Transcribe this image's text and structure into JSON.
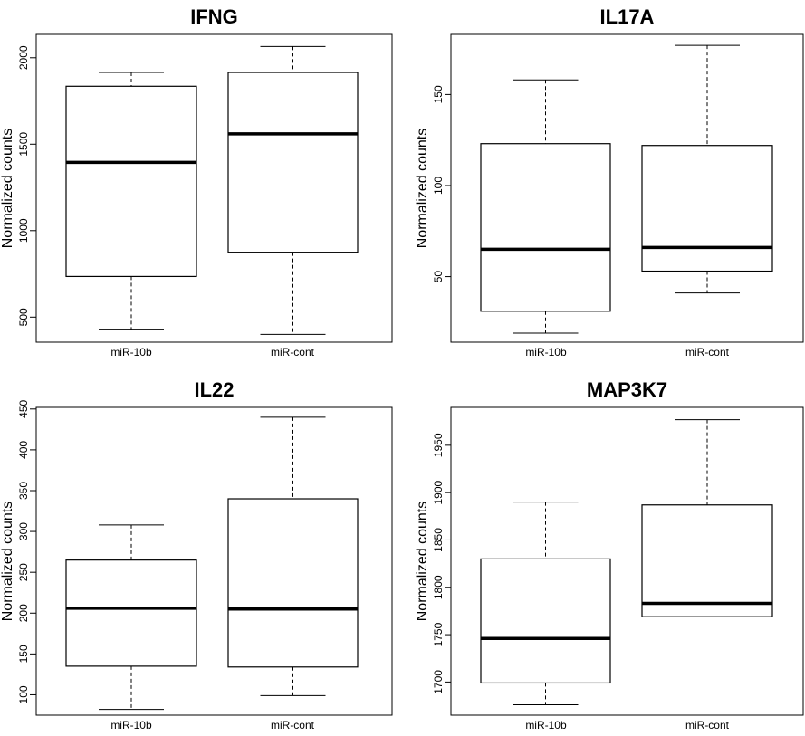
{
  "chart_data": [
    {
      "type": "boxplot",
      "title": "IFNG",
      "ylabel": "Normalized counts",
      "categories": [
        "miR-10b",
        "miR-cont"
      ],
      "yticks": [
        500,
        1000,
        1500,
        2000
      ],
      "ylim": [
        355,
        2135
      ],
      "boxes": [
        {
          "category": "miR-10b",
          "min": 430,
          "q1": 735,
          "median": 1395,
          "q3": 1835,
          "max": 1915
        },
        {
          "category": "miR-cont",
          "min": 400,
          "q1": 875,
          "median": 1560,
          "q3": 1915,
          "max": 2065
        }
      ]
    },
    {
      "type": "boxplot",
      "title": "IL17A",
      "ylabel": "Normalized counts",
      "categories": [
        "miR-10b",
        "miR-cont"
      ],
      "yticks": [
        50,
        100,
        150
      ],
      "ylim": [
        14,
        183
      ],
      "boxes": [
        {
          "category": "miR-10b",
          "min": 19,
          "q1": 31,
          "median": 65,
          "q3": 123,
          "max": 158
        },
        {
          "category": "miR-cont",
          "min": 41,
          "q1": 53,
          "median": 66,
          "q3": 122,
          "max": 177
        }
      ]
    },
    {
      "type": "boxplot",
      "title": "IL22",
      "ylabel": "Normalized counts",
      "categories": [
        "miR-10b",
        "miR-cont"
      ],
      "yticks": [
        100,
        150,
        200,
        250,
        300,
        350,
        400,
        450
      ],
      "ylim": [
        75,
        452
      ],
      "boxes": [
        {
          "category": "miR-10b",
          "min": 82,
          "q1": 135,
          "median": 206,
          "q3": 265,
          "max": 308
        },
        {
          "category": "miR-cont",
          "min": 99,
          "q1": 134,
          "median": 205,
          "q3": 340,
          "max": 440
        }
      ]
    },
    {
      "type": "boxplot",
      "title": "MAP3K7",
      "ylabel": "Normalized counts",
      "categories": [
        "miR-10b",
        "miR-cont"
      ],
      "yticks": [
        1700,
        1750,
        1800,
        1850,
        1900,
        1950
      ],
      "ylim": [
        1665,
        1990
      ],
      "boxes": [
        {
          "category": "miR-10b",
          "min": 1676,
          "q1": 1699,
          "median": 1746,
          "q3": 1830,
          "max": 1890
        },
        {
          "category": "miR-cont",
          "min": 1769,
          "q1": 1769,
          "median": 1783,
          "q3": 1887,
          "max": 1977
        }
      ]
    }
  ]
}
